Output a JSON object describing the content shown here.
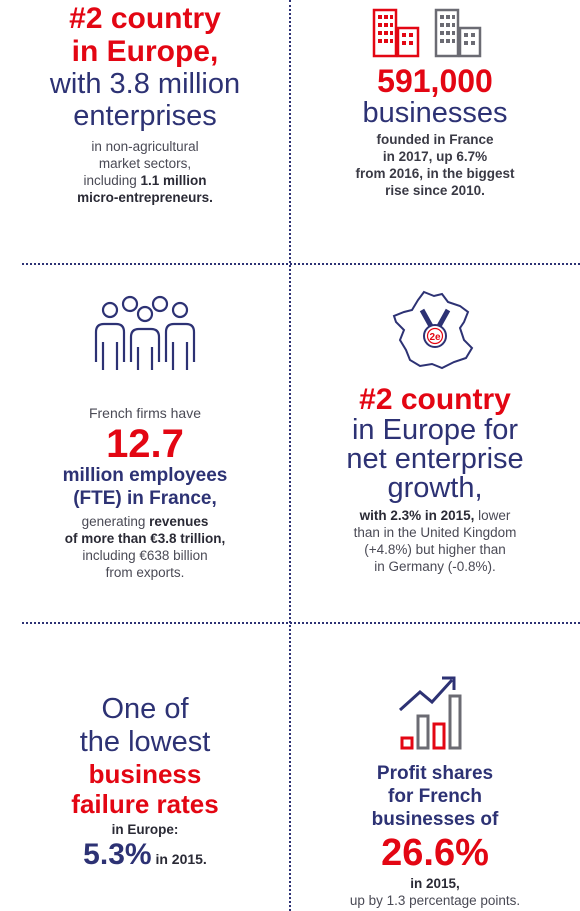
{
  "colors": {
    "brand_red": "#e30613",
    "navy": "#2d3274",
    "gray": "#4a4a55"
  },
  "icons": [
    "buildings-icon",
    "people-icon",
    "france-medal-icon",
    "growth-chart-icon"
  ],
  "medal_label": "2e",
  "block1": {
    "headline_l1": "#2 country",
    "headline_l2": "in Europe,",
    "sub_l1": "with 3.8 million",
    "sub_l2": "enterprises",
    "body_l1": "in non-agricultural",
    "body_l2": "market sectors,",
    "body_l3_pre": "including ",
    "body_l3_bold": "1.1 million",
    "body_l4": "micro-entrepreneurs."
  },
  "block2": {
    "number": "591,000",
    "unit": "businesses",
    "body_l1": "founded in France",
    "body_l2": "in 2017, up 6.7%",
    "body_l3": "from 2016, in the biggest",
    "body_l4": "rise since 2010."
  },
  "block3": {
    "intro": "French firms have",
    "number": "12.7",
    "label_l1": "million employees",
    "label_l2": "(FTE) in France,",
    "body_l1_pre": "generating ",
    "body_l1_bold": "revenues",
    "body_l2": "of more than €3.8 trillion,",
    "body_l3": "including €638 billion",
    "body_l4": "from exports."
  },
  "block4": {
    "headline": "#2 country",
    "sub_l1": "in Europe for",
    "sub_l2": "net enterprise",
    "sub_l3": "growth,",
    "body_l1_bold": "with 2.3% in 2015,",
    "body_l1_rest": " lower",
    "body_l2": "than in the United Kingdom",
    "body_l3": "(+4.8%) but higher than",
    "body_l4": "in Germany (-0.8%)."
  },
  "block5": {
    "sub_l1": "One of",
    "sub_l2": "the lowest",
    "headline_l1": "business",
    "headline_l2": "failure rates",
    "body_l1": "in Europe:",
    "number": "5.3%",
    "number_suffix": " in 2015."
  },
  "block6": {
    "label_l1": "Profit shares",
    "label_l2": "for French",
    "label_l3": "businesses of",
    "number": "26.6%",
    "body_l1": "in 2015,",
    "body_l2": "up by 1.3 percentage points."
  }
}
